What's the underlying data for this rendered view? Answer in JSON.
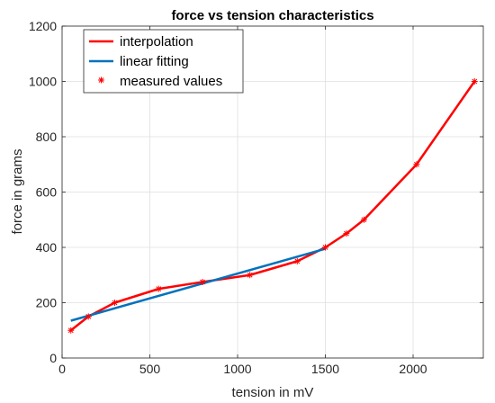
{
  "chart_data": {
    "type": "line",
    "title": "force vs tension characteristics",
    "xlabel": "tension in mV",
    "ylabel": "force in grams",
    "xlim": [
      0,
      2400
    ],
    "ylim": [
      0,
      1200
    ],
    "xticks": [
      0,
      500,
      1000,
      1500,
      2000
    ],
    "yticks": [
      0,
      200,
      400,
      600,
      800,
      1000,
      1200
    ],
    "grid": true,
    "legend_position": "top-left",
    "series": [
      {
        "name": "interpolation",
        "style": "line",
        "color": "#ff0000",
        "x": [
          50,
          150,
          300,
          550,
          800,
          1070,
          1340,
          1500,
          1620,
          1720,
          2020,
          2350
        ],
        "y": [
          100,
          150,
          200,
          250,
          275,
          300,
          350,
          400,
          450,
          500,
          700,
          1000
        ]
      },
      {
        "name": "linear fitting",
        "style": "line",
        "color": "#0072bd",
        "x": [
          50,
          1500
        ],
        "y": [
          135,
          395
        ]
      },
      {
        "name": "measured values",
        "style": "marker",
        "marker": "*",
        "color": "#ff0000",
        "x": [
          50,
          150,
          300,
          550,
          800,
          1070,
          1340,
          1500,
          1620,
          1720,
          2020,
          2350
        ],
        "y": [
          100,
          150,
          200,
          250,
          275,
          300,
          350,
          400,
          450,
          500,
          700,
          1000
        ]
      }
    ]
  }
}
